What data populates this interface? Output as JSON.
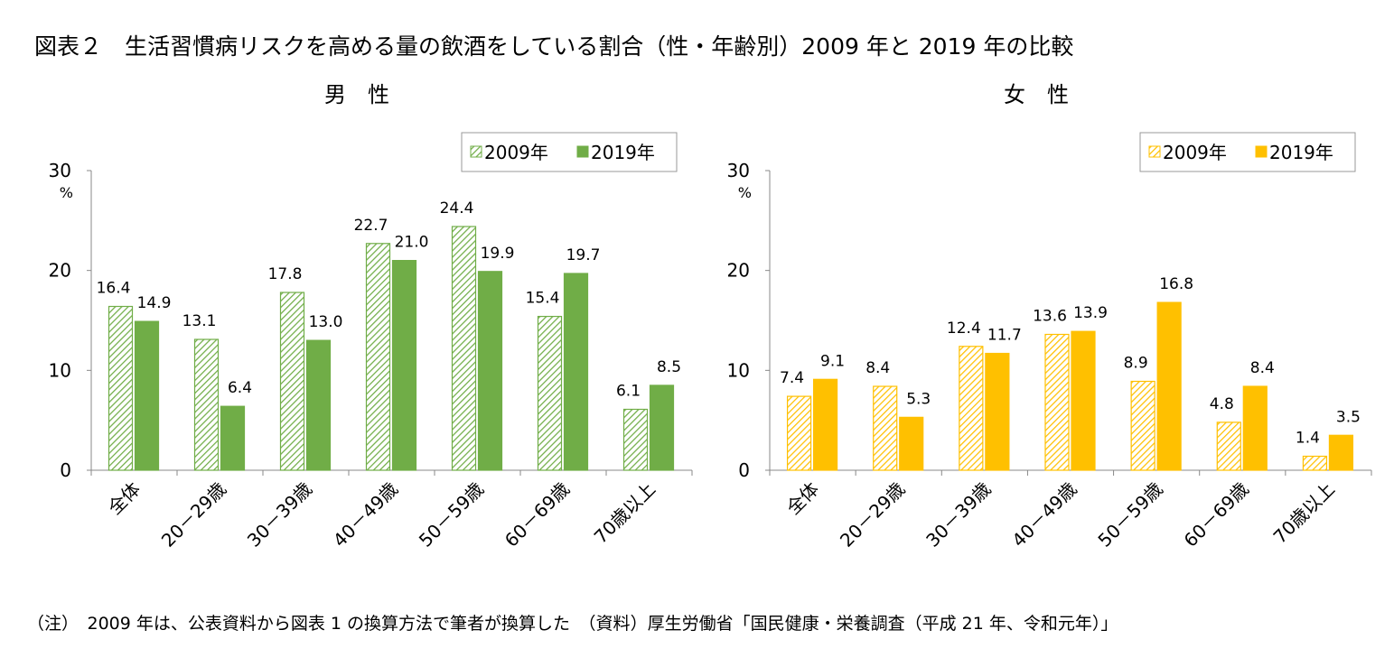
{
  "title": "図表２　生活習慣病リスクを高める量の飲酒をしている割合（性・年齢別）2009 年と 2019 年の比較",
  "note": "（注）　2009 年は、公表資料から図表 1 の換算方法で筆者が換算した　（資料）厚生労働省「国民健康・栄養調査（平成 21 年、令和元年）」",
  "chart_data": [
    {
      "type": "bar",
      "title": "男　性",
      "ylabel": "%",
      "ylim": [
        0,
        30
      ],
      "yticks": [
        "0",
        "10",
        "20",
        "30"
      ],
      "categories": [
        "全体",
        "20－29歳",
        "30－39歳",
        "40－49歳",
        "50－59歳",
        "60－69歳",
        "70歳以上"
      ],
      "legend_position": "top-right",
      "series": [
        {
          "name": "2009年",
          "values": [
            16.4,
            13.1,
            17.8,
            22.7,
            24.4,
            15.4,
            6.1
          ],
          "color": "#70ad47",
          "fill": "hatched"
        },
        {
          "name": "2019年",
          "values": [
            14.9,
            6.4,
            13.0,
            21.0,
            19.9,
            19.7,
            8.5
          ],
          "color": "#70ad47",
          "fill": "solid"
        }
      ]
    },
    {
      "type": "bar",
      "title": "女　性",
      "ylabel": "%",
      "ylim": [
        0,
        30
      ],
      "yticks": [
        "0",
        "10",
        "20",
        "30"
      ],
      "categories": [
        "全体",
        "20－29歳",
        "30－39歳",
        "40－49歳",
        "50－59歳",
        "60－69歳",
        "70歳以上"
      ],
      "legend_position": "top-right",
      "series": [
        {
          "name": "2009年",
          "values": [
            7.4,
            8.4,
            12.4,
            13.6,
            8.9,
            4.8,
            1.4
          ],
          "color": "#ffc000",
          "fill": "hatched"
        },
        {
          "name": "2019年",
          "values": [
            9.1,
            5.3,
            11.7,
            13.9,
            16.8,
            8.4,
            3.5
          ],
          "color": "#ffc000",
          "fill": "solid"
        }
      ]
    }
  ]
}
